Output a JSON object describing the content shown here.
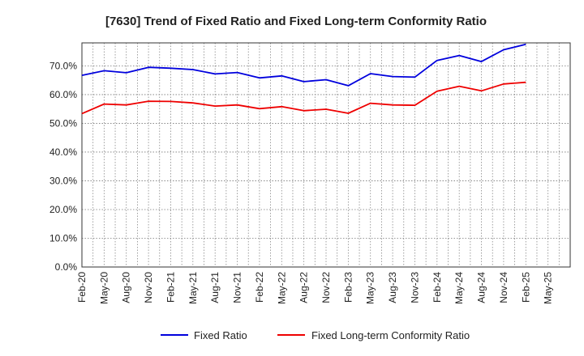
{
  "chart_data": {
    "type": "line",
    "title": "[7630]  Trend of Fixed Ratio and Fixed Long-term Conformity Ratio",
    "xlabel": "",
    "ylabel": "",
    "x": [
      "Feb-20",
      "May-20",
      "Aug-20",
      "Nov-20",
      "Feb-21",
      "May-21",
      "Aug-21",
      "Nov-21",
      "Feb-22",
      "May-22",
      "Aug-22",
      "Nov-22",
      "Feb-23",
      "May-23",
      "Aug-23",
      "Nov-23",
      "Feb-24",
      "May-24",
      "Aug-24",
      "Nov-24",
      "Feb-25"
    ],
    "x_ticks": [
      "Feb-20",
      "May-20",
      "Aug-20",
      "Nov-20",
      "Feb-21",
      "May-21",
      "Aug-21",
      "Nov-21",
      "Feb-22",
      "May-22",
      "Aug-22",
      "Nov-22",
      "Feb-23",
      "May-23",
      "Aug-23",
      "Nov-23",
      "Feb-24",
      "May-24",
      "Aug-24",
      "Nov-24",
      "Feb-25",
      "May-25"
    ],
    "y_ticks": [
      "0.0%",
      "10.0%",
      "20.0%",
      "30.0%",
      "40.0%",
      "50.0%",
      "60.0%",
      "70.0%"
    ],
    "ylim": [
      0,
      78
    ],
    "grid": true,
    "legend_position": "bottom",
    "series": [
      {
        "name": "Fixed Ratio",
        "color": "#0000dd",
        "values": [
          66.7,
          68.3,
          67.6,
          69.5,
          69.2,
          68.7,
          67.2,
          67.7,
          65.8,
          66.5,
          64.5,
          65.2,
          63.1,
          67.3,
          66.3,
          66.1,
          71.9,
          73.6,
          71.5,
          75.6,
          77.5
        ]
      },
      {
        "name": "Fixed Long-term Conformity Ratio",
        "color": "#ee0000",
        "values": [
          53.4,
          56.7,
          56.4,
          57.7,
          57.6,
          57.1,
          56.0,
          56.4,
          55.1,
          55.8,
          54.4,
          54.9,
          53.5,
          57.0,
          56.4,
          56.3,
          61.2,
          62.9,
          61.3,
          63.7,
          64.3
        ]
      }
    ]
  }
}
